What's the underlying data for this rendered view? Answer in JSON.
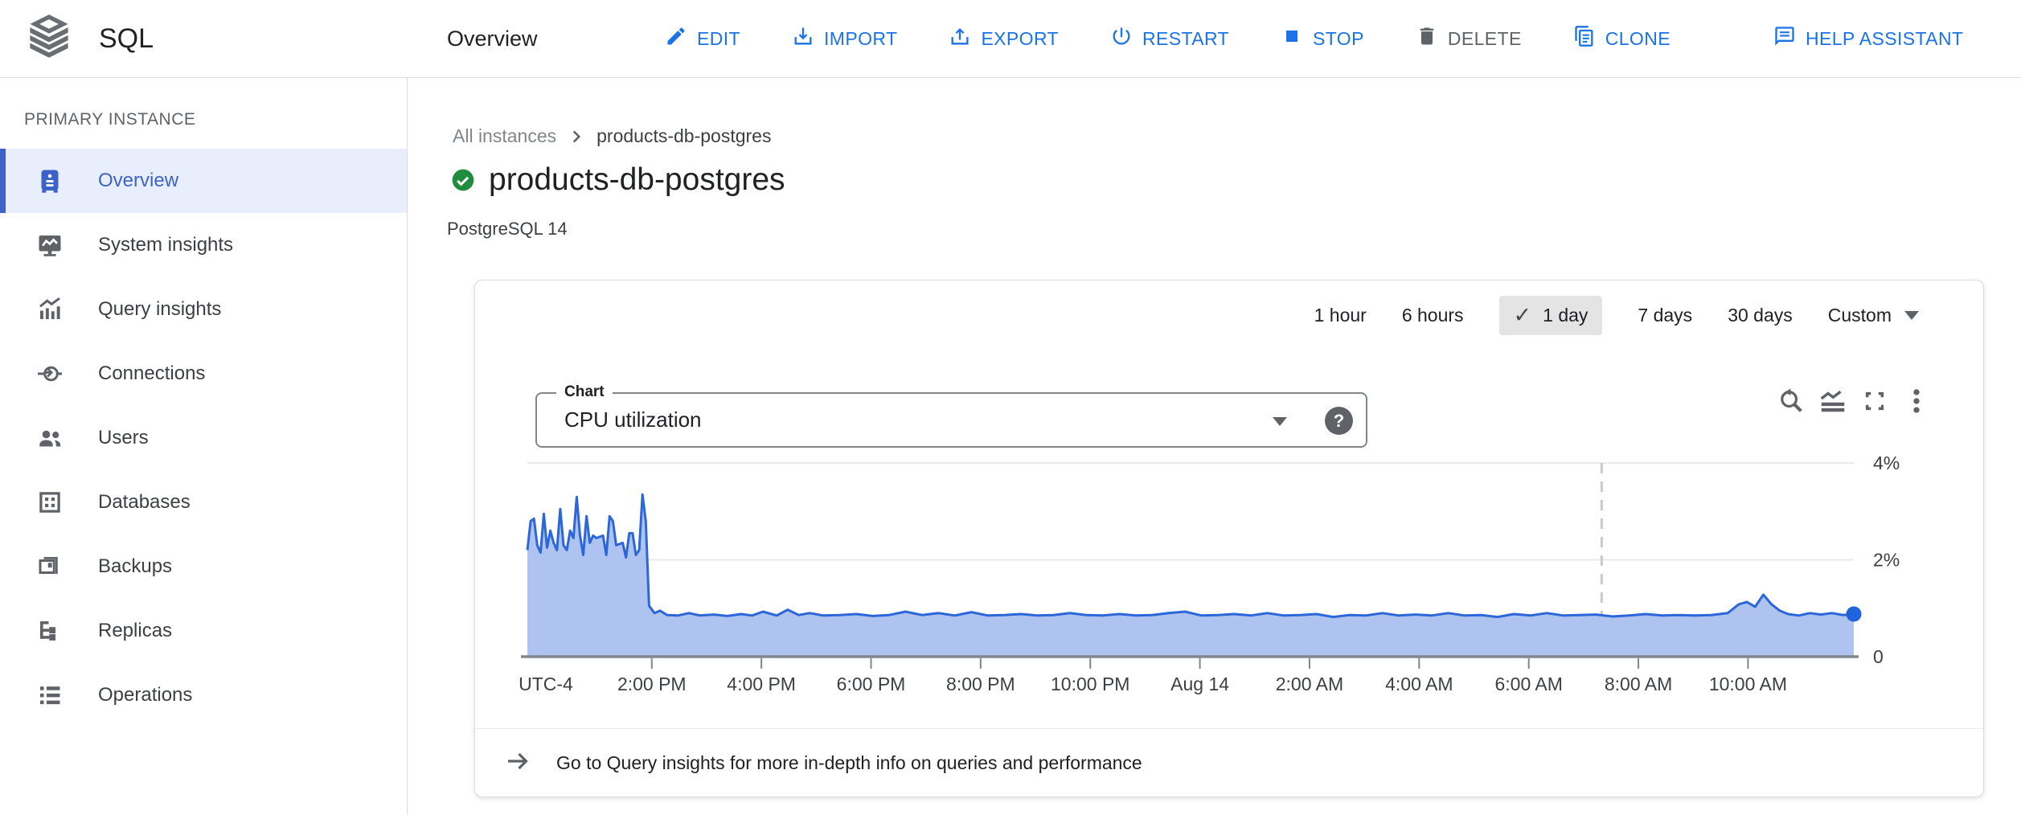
{
  "header": {
    "app_name": "SQL",
    "page_title": "Overview",
    "actions": [
      {
        "label": "EDIT",
        "icon": "edit-icon"
      },
      {
        "label": "IMPORT",
        "icon": "import-icon"
      },
      {
        "label": "EXPORT",
        "icon": "export-icon"
      },
      {
        "label": "RESTART",
        "icon": "restart-icon"
      },
      {
        "label": "STOP",
        "icon": "stop-icon"
      },
      {
        "label": "DELETE",
        "icon": "delete-icon"
      },
      {
        "label": "CLONE",
        "icon": "clone-icon"
      },
      {
        "label": "HELP ASSISTANT",
        "icon": "help-assistant-icon"
      }
    ]
  },
  "sidebar": {
    "section_label": "PRIMARY INSTANCE",
    "items": [
      {
        "label": "Overview",
        "icon": "overview-icon",
        "selected": true
      },
      {
        "label": "System insights",
        "icon": "system-insights-icon",
        "selected": false
      },
      {
        "label": "Query insights",
        "icon": "query-insights-icon",
        "selected": false
      },
      {
        "label": "Connections",
        "icon": "connections-icon",
        "selected": false
      },
      {
        "label": "Users",
        "icon": "users-icon",
        "selected": false
      },
      {
        "label": "Databases",
        "icon": "databases-icon",
        "selected": false
      },
      {
        "label": "Backups",
        "icon": "backups-icon",
        "selected": false
      },
      {
        "label": "Replicas",
        "icon": "replicas-icon",
        "selected": false
      },
      {
        "label": "Operations",
        "icon": "operations-icon",
        "selected": false
      }
    ]
  },
  "content": {
    "breadcrumb": {
      "root": "All instances",
      "current": "products-db-postgres"
    },
    "instance_name": "products-db-postgres",
    "version": "PostgreSQL 14"
  },
  "card": {
    "ranges": [
      {
        "label": "1 hour",
        "selected": false
      },
      {
        "label": "6 hours",
        "selected": false
      },
      {
        "label": "1 day",
        "selected": true
      },
      {
        "label": "7 days",
        "selected": false
      },
      {
        "label": "30 days",
        "selected": false
      }
    ],
    "selected_check": "✓",
    "custom_label": "Custom",
    "selector": {
      "label": "Chart",
      "value": "CPU utilization",
      "help": "?"
    },
    "tools": [
      "zoom-reset",
      "area-chart-type",
      "fullscreen",
      "more-options"
    ],
    "footer_link": "Go to Query insights for more in-depth info on queries and performance"
  },
  "chart_data": {
    "type": "area",
    "title": "CPU utilization",
    "ylabel": "%",
    "ylim": [
      0,
      4
    ],
    "yticks": [
      {
        "v": 0,
        "label": "0"
      },
      {
        "v": 2,
        "label": "2%"
      },
      {
        "v": 4,
        "label": "4%"
      }
    ],
    "x_start_label": "UTC-4",
    "xlim_hours": [
      0,
      24.2
    ],
    "xticks": [
      {
        "t": 2.27,
        "label": "2:00 PM"
      },
      {
        "t": 4.27,
        "label": "4:00 PM"
      },
      {
        "t": 6.27,
        "label": "6:00 PM"
      },
      {
        "t": 8.27,
        "label": "8:00 PM"
      },
      {
        "t": 10.27,
        "label": "10:00 PM"
      },
      {
        "t": 12.27,
        "label": "Aug 14"
      },
      {
        "t": 14.27,
        "label": "2:00 AM"
      },
      {
        "t": 16.27,
        "label": "4:00 AM"
      },
      {
        "t": 18.27,
        "label": "6:00 AM"
      },
      {
        "t": 20.27,
        "label": "8:00 AM"
      },
      {
        "t": 22.27,
        "label": "10:00 AM"
      }
    ],
    "marker_line_t": 19.6,
    "grid": true,
    "legend": "none",
    "colors": {
      "line": "#2c67da",
      "fill": "#aec3ef",
      "dot": "#1f64dc",
      "grid": "#e8eaed",
      "baseline": "#80868b",
      "marker_dash": "#c6c9cd"
    },
    "series": [
      {
        "name": "CPU utilization (%)",
        "points": [
          [
            0,
            2.2
          ],
          [
            0.06,
            2.8
          ],
          [
            0.12,
            2.85
          ],
          [
            0.18,
            2.3
          ],
          [
            0.24,
            2.15
          ],
          [
            0.3,
            2.95
          ],
          [
            0.36,
            2.25
          ],
          [
            0.42,
            2.6
          ],
          [
            0.48,
            2.35
          ],
          [
            0.54,
            2.2
          ],
          [
            0.6,
            3.05
          ],
          [
            0.66,
            2.3
          ],
          [
            0.72,
            2.2
          ],
          [
            0.78,
            2.6
          ],
          [
            0.84,
            2.45
          ],
          [
            0.9,
            3.3
          ],
          [
            0.96,
            2.5
          ],
          [
            1.02,
            2.1
          ],
          [
            1.08,
            2.9
          ],
          [
            1.14,
            2.35
          ],
          [
            1.2,
            2.5
          ],
          [
            1.26,
            2.45
          ],
          [
            1.38,
            2.5
          ],
          [
            1.44,
            2.1
          ],
          [
            1.5,
            2.9
          ],
          [
            1.56,
            2.8
          ],
          [
            1.62,
            2.3
          ],
          [
            1.74,
            2.35
          ],
          [
            1.8,
            2.05
          ],
          [
            1.86,
            2.55
          ],
          [
            1.92,
            2.55
          ],
          [
            1.98,
            2.1
          ],
          [
            2.04,
            2.2
          ],
          [
            2.1,
            3.35
          ],
          [
            2.16,
            2.8
          ],
          [
            2.22,
            1.05
          ],
          [
            2.32,
            0.9
          ],
          [
            2.42,
            0.95
          ],
          [
            2.55,
            0.86
          ],
          [
            2.75,
            0.85
          ],
          [
            2.95,
            0.9
          ],
          [
            3.15,
            0.85
          ],
          [
            3.4,
            0.87
          ],
          [
            3.65,
            0.84
          ],
          [
            3.9,
            0.88
          ],
          [
            4.1,
            0.85
          ],
          [
            4.3,
            0.93
          ],
          [
            4.55,
            0.85
          ],
          [
            4.75,
            0.97
          ],
          [
            4.95,
            0.86
          ],
          [
            5.15,
            0.9
          ],
          [
            5.4,
            0.85
          ],
          [
            5.7,
            0.86
          ],
          [
            6.0,
            0.88
          ],
          [
            6.3,
            0.84
          ],
          [
            6.6,
            0.86
          ],
          [
            6.9,
            0.93
          ],
          [
            7.2,
            0.86
          ],
          [
            7.5,
            0.9
          ],
          [
            7.8,
            0.85
          ],
          [
            8.1,
            0.92
          ],
          [
            8.4,
            0.85
          ],
          [
            8.7,
            0.86
          ],
          [
            9.0,
            0.88
          ],
          [
            9.3,
            0.85
          ],
          [
            9.6,
            0.86
          ],
          [
            9.9,
            0.9
          ],
          [
            10.2,
            0.86
          ],
          [
            10.5,
            0.85
          ],
          [
            10.8,
            0.88
          ],
          [
            11.1,
            0.85
          ],
          [
            11.4,
            0.86
          ],
          [
            11.7,
            0.9
          ],
          [
            12.0,
            0.93
          ],
          [
            12.3,
            0.85
          ],
          [
            12.6,
            0.86
          ],
          [
            12.9,
            0.88
          ],
          [
            13.2,
            0.85
          ],
          [
            13.5,
            0.9
          ],
          [
            13.8,
            0.85
          ],
          [
            14.1,
            0.86
          ],
          [
            14.4,
            0.88
          ],
          [
            14.7,
            0.82
          ],
          [
            15.0,
            0.86
          ],
          [
            15.3,
            0.85
          ],
          [
            15.6,
            0.9
          ],
          [
            15.9,
            0.85
          ],
          [
            16.2,
            0.87
          ],
          [
            16.5,
            0.85
          ],
          [
            16.8,
            0.9
          ],
          [
            17.1,
            0.85
          ],
          [
            17.4,
            0.86
          ],
          [
            17.7,
            0.82
          ],
          [
            18.0,
            0.88
          ],
          [
            18.3,
            0.85
          ],
          [
            18.6,
            0.9
          ],
          [
            18.9,
            0.85
          ],
          [
            19.2,
            0.86
          ],
          [
            19.5,
            0.87
          ],
          [
            19.8,
            0.83
          ],
          [
            20.1,
            0.85
          ],
          [
            20.4,
            0.88
          ],
          [
            20.7,
            0.85
          ],
          [
            21.0,
            0.86
          ],
          [
            21.3,
            0.85
          ],
          [
            21.6,
            0.86
          ],
          [
            21.9,
            0.9
          ],
          [
            22.1,
            1.08
          ],
          [
            22.25,
            1.13
          ],
          [
            22.4,
            1.03
          ],
          [
            22.55,
            1.28
          ],
          [
            22.7,
            1.08
          ],
          [
            22.85,
            0.95
          ],
          [
            23.0,
            0.88
          ],
          [
            23.2,
            0.85
          ],
          [
            23.4,
            0.9
          ],
          [
            23.6,
            0.87
          ],
          [
            23.8,
            0.9
          ],
          [
            24.0,
            0.86
          ],
          [
            24.2,
            0.88
          ]
        ]
      }
    ]
  }
}
